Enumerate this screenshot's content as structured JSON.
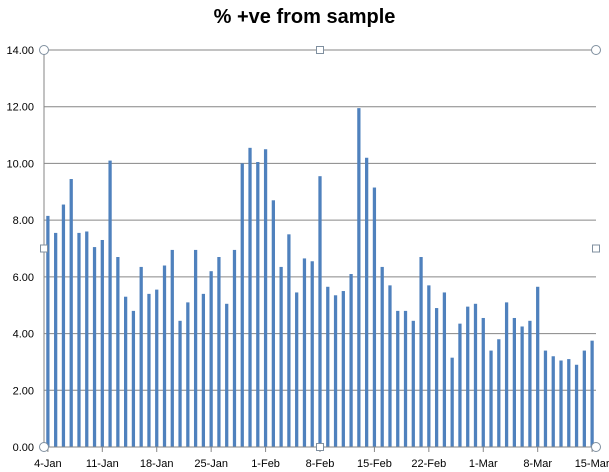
{
  "chart_data": {
    "type": "bar",
    "title": "% +ve from sample",
    "xlabel": "",
    "ylabel": "",
    "ylim": [
      0,
      14
    ],
    "yticks": [
      "0.00",
      "2.00",
      "4.00",
      "6.00",
      "8.00",
      "10.00",
      "12.00",
      "14.00"
    ],
    "ytick_values": [
      0,
      2,
      4,
      6,
      8,
      10,
      12,
      14
    ],
    "grid": true,
    "legend": "none",
    "bar_color": "#4f81bd",
    "grid_color": "#868686",
    "x_tick_labels": [
      "4-Jan",
      "11-Jan",
      "18-Jan",
      "25-Jan",
      "1-Feb",
      "8-Feb",
      "15-Feb",
      "22-Feb",
      "1-Mar",
      "8-Mar",
      "15-Mar"
    ],
    "x_tick_label_indices": [
      0,
      7,
      14,
      21,
      28,
      35,
      42,
      49,
      56,
      63,
      70
    ],
    "categories": [
      "4-Jan",
      "5-Jan",
      "6-Jan",
      "7-Jan",
      "8-Jan",
      "9-Jan",
      "10-Jan",
      "11-Jan",
      "12-Jan",
      "13-Jan",
      "14-Jan",
      "15-Jan",
      "16-Jan",
      "17-Jan",
      "18-Jan",
      "19-Jan",
      "20-Jan",
      "21-Jan",
      "22-Jan",
      "23-Jan",
      "24-Jan",
      "25-Jan",
      "26-Jan",
      "27-Jan",
      "28-Jan",
      "29-Jan",
      "30-Jan",
      "31-Jan",
      "1-Feb",
      "2-Feb",
      "3-Feb",
      "4-Feb",
      "5-Feb",
      "6-Feb",
      "7-Feb",
      "8-Feb",
      "9-Feb",
      "10-Feb",
      "11-Feb",
      "12-Feb",
      "13-Feb",
      "14-Feb",
      "15-Feb",
      "16-Feb",
      "17-Feb",
      "18-Feb",
      "19-Feb",
      "20-Feb",
      "21-Feb",
      "22-Feb",
      "23-Feb",
      "24-Feb",
      "25-Feb",
      "26-Feb",
      "27-Feb",
      "28-Feb",
      "1-Mar",
      "2-Mar",
      "3-Mar",
      "4-Mar",
      "5-Mar",
      "6-Mar",
      "7-Mar",
      "8-Mar",
      "9-Mar",
      "10-Mar",
      "11-Mar",
      "12-Mar",
      "13-Mar",
      "14-Mar",
      "15-Mar"
    ],
    "values": [
      8.15,
      7.55,
      8.55,
      9.45,
      7.55,
      7.6,
      7.05,
      7.3,
      10.1,
      6.7,
      5.3,
      4.8,
      6.35,
      5.4,
      5.55,
      6.4,
      6.95,
      4.45,
      5.1,
      6.95,
      5.4,
      6.2,
      6.7,
      5.05,
      6.95,
      10.0,
      10.55,
      10.05,
      10.5,
      8.7,
      6.35,
      7.5,
      5.45,
      6.65,
      6.55,
      9.55,
      5.65,
      5.35,
      5.5,
      6.1,
      11.95,
      10.2,
      9.15,
      6.35,
      5.7,
      4.8,
      4.8,
      4.45,
      6.7,
      5.7,
      4.9,
      5.45,
      3.15,
      4.35,
      4.95,
      5.05,
      4.55,
      3.4,
      3.8,
      5.1,
      4.55,
      4.25,
      4.45,
      5.65,
      3.4,
      3.2,
      3.05,
      3.1,
      2.9,
      3.4,
      3.75
    ]
  }
}
